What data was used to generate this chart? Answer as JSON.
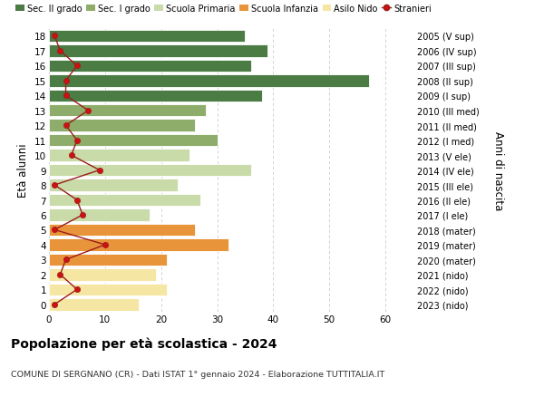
{
  "ages": [
    0,
    1,
    2,
    3,
    4,
    5,
    6,
    7,
    8,
    9,
    10,
    11,
    12,
    13,
    14,
    15,
    16,
    17,
    18
  ],
  "labels_right": [
    "2023 (nido)",
    "2022 (nido)",
    "2021 (nido)",
    "2020 (mater)",
    "2019 (mater)",
    "2018 (mater)",
    "2017 (I ele)",
    "2016 (II ele)",
    "2015 (III ele)",
    "2014 (IV ele)",
    "2013 (V ele)",
    "2012 (I med)",
    "2011 (II med)",
    "2010 (III med)",
    "2009 (I sup)",
    "2008 (II sup)",
    "2007 (III sup)",
    "2006 (IV sup)",
    "2005 (V sup)"
  ],
  "bar_values": [
    16,
    21,
    19,
    21,
    32,
    26,
    18,
    27,
    23,
    36,
    25,
    30,
    26,
    28,
    38,
    57,
    36,
    39,
    35
  ],
  "stranieri": [
    1,
    5,
    2,
    3,
    10,
    1,
    6,
    5,
    1,
    9,
    4,
    5,
    3,
    7,
    3,
    3,
    5,
    2,
    1
  ],
  "bar_colors": [
    "#f5e6a3",
    "#f5e6a3",
    "#f5e6a3",
    "#e8943a",
    "#e8943a",
    "#e8943a",
    "#c8dba8",
    "#c8dba8",
    "#c8dba8",
    "#c8dba8",
    "#c8dba8",
    "#8fad6a",
    "#8fad6a",
    "#8fad6a",
    "#4a7c44",
    "#4a7c44",
    "#4a7c44",
    "#4a7c44",
    "#4a7c44"
  ],
  "legend_labels": [
    "Sec. II grado",
    "Sec. I grado",
    "Scuola Primaria",
    "Scuola Infanzia",
    "Asilo Nido",
    "Stranieri"
  ],
  "legend_colors": [
    "#4a7c44",
    "#8fad6a",
    "#c8dba8",
    "#e8943a",
    "#f5e6a3",
    "#cc1111"
  ],
  "title": "Popolazione per età scolastica - 2024",
  "subtitle": "COMUNE DI SERGNANO (CR) - Dati ISTAT 1° gennaio 2024 - Elaborazione TUTTITALIA.IT",
  "ylabel": "Età alunni",
  "ylabel_right": "Anni di nascita",
  "xlim": [
    0,
    65
  ],
  "ylim": [
    -0.5,
    18.5
  ],
  "xticks": [
    0,
    10,
    20,
    30,
    40,
    50,
    60
  ],
  "background_color": "#ffffff",
  "grid_color": "#cccccc"
}
